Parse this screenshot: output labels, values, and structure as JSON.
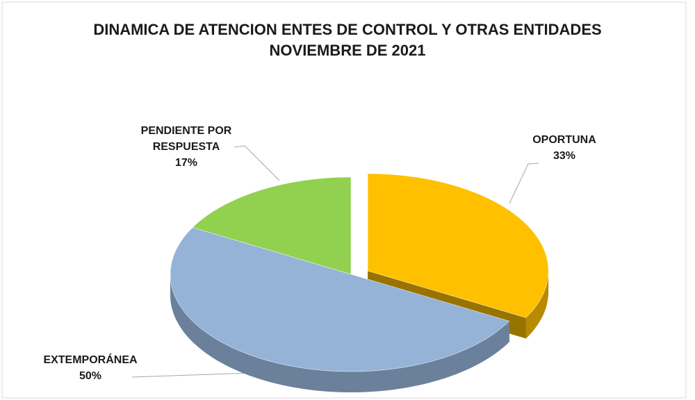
{
  "chart_data": {
    "type": "pie3d",
    "title": "DINAMICA DE ATENCION ENTES DE CONTROL Y OTRAS ENTIDADES NOVIEMBRE DE 2021",
    "categories": [
      "OPORTUNA",
      "EXTEMPORÁNEA",
      "PENDIENTE POR RESPUESTA"
    ],
    "values": [
      33,
      50,
      17
    ],
    "value_labels": [
      "33%",
      "50%",
      "17%"
    ],
    "colors": [
      "#FFC000",
      "#95B3D7",
      "#92D050"
    ]
  }
}
